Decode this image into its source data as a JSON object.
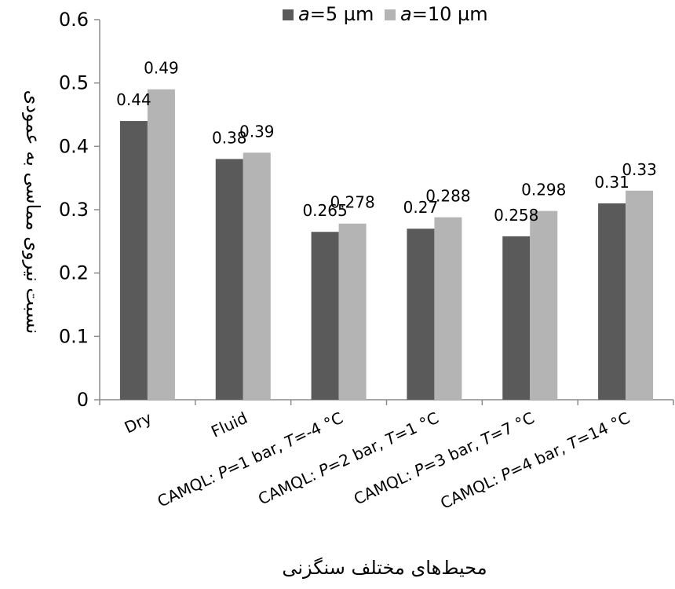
{
  "chart_data": {
    "type": "bar",
    "title": "",
    "xlabel": "محیط‌های مختلف سنگزنی",
    "ylabel": "نسبت نیروی مماسی به عمودی",
    "ylim": [
      0,
      0.6
    ],
    "yticks": [
      "0",
      "0.1",
      "0.2",
      "0.3",
      "0.4",
      "0.5",
      "0.6"
    ],
    "grid": false,
    "legend_position": "top",
    "categories": [
      {
        "parts": [
          {
            "t": "Dry",
            "i": false
          }
        ]
      },
      {
        "parts": [
          {
            "t": "Fluid",
            "i": false
          }
        ]
      },
      {
        "parts": [
          {
            "t": "CAMQL: ",
            "i": false
          },
          {
            "t": "P",
            "i": true
          },
          {
            "t": "=1 bar, ",
            "i": false
          },
          {
            "t": "T",
            "i": true
          },
          {
            "t": "=-4 °C",
            "i": false
          }
        ]
      },
      {
        "parts": [
          {
            "t": "CAMQL: ",
            "i": false
          },
          {
            "t": "P",
            "i": true
          },
          {
            "t": "=2 bar, ",
            "i": false
          },
          {
            "t": "T",
            "i": true
          },
          {
            "t": "=1 °C",
            "i": false
          }
        ]
      },
      {
        "parts": [
          {
            "t": "CAMQL: ",
            "i": false
          },
          {
            "t": "P",
            "i": true
          },
          {
            "t": "=3 bar, ",
            "i": false
          },
          {
            "t": "T",
            "i": true
          },
          {
            "t": "=7 °C",
            "i": false
          }
        ]
      },
      {
        "parts": [
          {
            "t": "CAMQL: ",
            "i": false
          },
          {
            "t": "P",
            "i": true
          },
          {
            "t": "=4 bar, ",
            "i": false
          },
          {
            "t": "T",
            "i": true
          },
          {
            "t": "=14 °C",
            "i": false
          }
        ]
      }
    ],
    "series": [
      {
        "name_parts": [
          {
            "t": "a",
            "i": true
          },
          {
            "t": "=5 µm",
            "i": false
          }
        ],
        "color": "#5a5a5a",
        "values": [
          0.44,
          0.38,
          0.265,
          0.27,
          0.258,
          0.31
        ],
        "labels": [
          "0.44",
          "0.38",
          "0.265",
          "0.27",
          "0.258",
          "0.31"
        ]
      },
      {
        "name_parts": [
          {
            "t": "a",
            "i": true
          },
          {
            "t": "=10 µm",
            "i": false
          }
        ],
        "color": "#b4b4b4",
        "values": [
          0.49,
          0.39,
          0.278,
          0.288,
          0.298,
          0.33
        ],
        "labels": [
          "0.49",
          "0.39",
          "0.278",
          "0.288",
          "0.298",
          "0.33"
        ]
      }
    ]
  }
}
